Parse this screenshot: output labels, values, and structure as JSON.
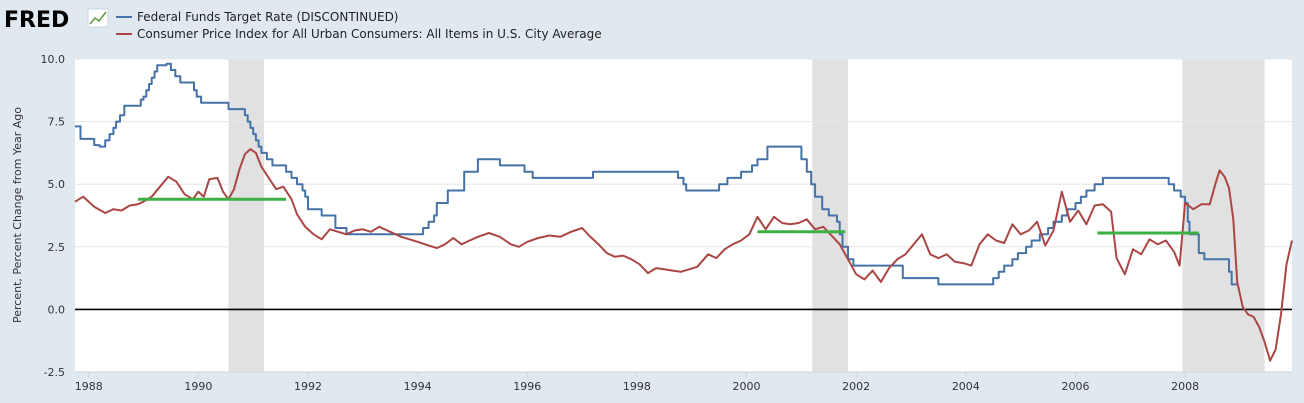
{
  "logo": {
    "text": "FRED"
  },
  "colors": {
    "background": "#e1e9f0",
    "plot_background": "#ffffff",
    "fed_funds": "#4572a7",
    "cpi": "#aa4643",
    "marker": "#3cb043",
    "recession": "#e1e1e1",
    "zero_line": "#000000"
  },
  "chart_data": {
    "type": "line",
    "title": "",
    "xlabel": "",
    "ylabel": "Percent, Percent Change from Year Ago",
    "xlim": [
      1987.75,
      2009.95
    ],
    "ylim": [
      -2.5,
      10.0
    ],
    "x_ticks": [
      1988,
      1990,
      1992,
      1994,
      1996,
      1998,
      2000,
      2002,
      2004,
      2006,
      2008
    ],
    "x_tick_labels": [
      "1988",
      "1990",
      "1992",
      "1994",
      "1996",
      "1998",
      "2000",
      "2002",
      "2004",
      "2006",
      "2008"
    ],
    "y_ticks": [
      -2.5,
      0.0,
      2.5,
      5.0,
      7.5,
      10.0
    ],
    "y_tick_labels": [
      "-2.5",
      "0.0",
      "2.5",
      "5.0",
      "7.5",
      "10.0"
    ],
    "reference_line": {
      "y": 0.0
    },
    "recessions": [
      [
        1990.55,
        1991.2
      ],
      [
        2001.2,
        2001.85
      ],
      [
        2007.95,
        2009.45
      ]
    ],
    "series": [
      {
        "name": "Federal Funds Target Rate (DISCONTINUED)",
        "step": true,
        "points": [
          [
            1987.75,
            7.31
          ],
          [
            1987.85,
            6.81
          ],
          [
            1988.1,
            6.56
          ],
          [
            1988.2,
            6.5
          ],
          [
            1988.3,
            6.75
          ],
          [
            1988.38,
            7.0
          ],
          [
            1988.45,
            7.25
          ],
          [
            1988.5,
            7.5
          ],
          [
            1988.57,
            7.75
          ],
          [
            1988.65,
            8.13
          ],
          [
            1988.95,
            8.38
          ],
          [
            1989.0,
            8.5
          ],
          [
            1989.05,
            8.75
          ],
          [
            1989.1,
            9.0
          ],
          [
            1989.15,
            9.25
          ],
          [
            1989.2,
            9.5
          ],
          [
            1989.25,
            9.75
          ],
          [
            1989.42,
            9.81
          ],
          [
            1989.5,
            9.56
          ],
          [
            1989.58,
            9.31
          ],
          [
            1989.67,
            9.06
          ],
          [
            1989.92,
            8.75
          ],
          [
            1989.97,
            8.5
          ],
          [
            1990.05,
            8.25
          ],
          [
            1990.55,
            8.0
          ],
          [
            1990.85,
            7.75
          ],
          [
            1990.9,
            7.5
          ],
          [
            1990.95,
            7.25
          ],
          [
            1991.0,
            7.0
          ],
          [
            1991.05,
            6.75
          ],
          [
            1991.1,
            6.5
          ],
          [
            1991.15,
            6.25
          ],
          [
            1991.25,
            6.0
          ],
          [
            1991.35,
            5.75
          ],
          [
            1991.6,
            5.5
          ],
          [
            1991.7,
            5.25
          ],
          [
            1991.8,
            5.0
          ],
          [
            1991.9,
            4.75
          ],
          [
            1991.95,
            4.5
          ],
          [
            1992.0,
            4.0
          ],
          [
            1992.25,
            3.75
          ],
          [
            1992.5,
            3.25
          ],
          [
            1992.7,
            3.0
          ],
          [
            1994.1,
            3.25
          ],
          [
            1994.2,
            3.5
          ],
          [
            1994.3,
            3.75
          ],
          [
            1994.35,
            4.25
          ],
          [
            1994.55,
            4.75
          ],
          [
            1994.85,
            5.5
          ],
          [
            1995.1,
            6.0
          ],
          [
            1995.5,
            5.75
          ],
          [
            1995.95,
            5.5
          ],
          [
            1996.1,
            5.25
          ],
          [
            1997.2,
            5.5
          ],
          [
            1998.75,
            5.25
          ],
          [
            1998.85,
            5.0
          ],
          [
            1998.9,
            4.75
          ],
          [
            1999.5,
            5.0
          ],
          [
            1999.65,
            5.25
          ],
          [
            1999.9,
            5.5
          ],
          [
            2000.1,
            5.75
          ],
          [
            2000.2,
            6.0
          ],
          [
            2000.38,
            6.5
          ],
          [
            2001.0,
            6.0
          ],
          [
            2001.1,
            5.5
          ],
          [
            2001.18,
            5.0
          ],
          [
            2001.25,
            4.5
          ],
          [
            2001.38,
            4.0
          ],
          [
            2001.5,
            3.75
          ],
          [
            2001.65,
            3.5
          ],
          [
            2001.7,
            3.0
          ],
          [
            2001.75,
            2.5
          ],
          [
            2001.85,
            2.0
          ],
          [
            2001.95,
            1.75
          ],
          [
            2002.85,
            1.25
          ],
          [
            2003.5,
            1.0
          ],
          [
            2004.5,
            1.25
          ],
          [
            2004.6,
            1.5
          ],
          [
            2004.7,
            1.75
          ],
          [
            2004.85,
            2.0
          ],
          [
            2004.95,
            2.25
          ],
          [
            2005.1,
            2.5
          ],
          [
            2005.2,
            2.75
          ],
          [
            2005.35,
            3.0
          ],
          [
            2005.5,
            3.25
          ],
          [
            2005.6,
            3.5
          ],
          [
            2005.75,
            3.75
          ],
          [
            2005.85,
            4.0
          ],
          [
            2006.0,
            4.25
          ],
          [
            2006.1,
            4.5
          ],
          [
            2006.2,
            4.75
          ],
          [
            2006.35,
            5.0
          ],
          [
            2006.5,
            5.25
          ],
          [
            2007.7,
            5.0
          ],
          [
            2007.8,
            4.75
          ],
          [
            2007.92,
            4.5
          ],
          [
            2008.0,
            4.25
          ],
          [
            2008.05,
            3.5
          ],
          [
            2008.08,
            3.0
          ],
          [
            2008.25,
            2.25
          ],
          [
            2008.35,
            2.0
          ],
          [
            2008.8,
            1.5
          ],
          [
            2008.85,
            1.0
          ],
          [
            2008.97,
            1.0
          ]
        ]
      },
      {
        "name": "Consumer Price Index for All Urban Consumers: All Items in U.S. City Average",
        "step": false,
        "points": [
          [
            1987.75,
            4.3
          ],
          [
            1987.9,
            4.5
          ],
          [
            1988.1,
            4.1
          ],
          [
            1988.3,
            3.85
          ],
          [
            1988.45,
            4.0
          ],
          [
            1988.6,
            3.95
          ],
          [
            1988.75,
            4.15
          ],
          [
            1988.9,
            4.2
          ],
          [
            1989.0,
            4.3
          ],
          [
            1989.15,
            4.5
          ],
          [
            1989.3,
            4.9
          ],
          [
            1989.45,
            5.3
          ],
          [
            1989.6,
            5.1
          ],
          [
            1989.75,
            4.6
          ],
          [
            1989.9,
            4.4
          ],
          [
            1990.0,
            4.7
          ],
          [
            1990.1,
            4.5
          ],
          [
            1990.2,
            5.2
          ],
          [
            1990.35,
            5.25
          ],
          [
            1990.45,
            4.7
          ],
          [
            1990.55,
            4.4
          ],
          [
            1990.65,
            4.8
          ],
          [
            1990.75,
            5.6
          ],
          [
            1990.85,
            6.2
          ],
          [
            1990.95,
            6.4
          ],
          [
            1991.05,
            6.25
          ],
          [
            1991.15,
            5.7
          ],
          [
            1991.3,
            5.2
          ],
          [
            1991.42,
            4.8
          ],
          [
            1991.55,
            4.9
          ],
          [
            1991.7,
            4.4
          ],
          [
            1991.8,
            3.8
          ],
          [
            1991.95,
            3.3
          ],
          [
            1992.1,
            3.0
          ],
          [
            1992.25,
            2.8
          ],
          [
            1992.4,
            3.2
          ],
          [
            1992.55,
            3.1
          ],
          [
            1992.7,
            3.0
          ],
          [
            1992.85,
            3.15
          ],
          [
            1993.0,
            3.2
          ],
          [
            1993.15,
            3.1
          ],
          [
            1993.3,
            3.3
          ],
          [
            1993.5,
            3.1
          ],
          [
            1993.7,
            2.9
          ],
          [
            1993.85,
            2.8
          ],
          [
            1994.0,
            2.7
          ],
          [
            1994.2,
            2.55
          ],
          [
            1994.35,
            2.45
          ],
          [
            1994.5,
            2.6
          ],
          [
            1994.65,
            2.85
          ],
          [
            1994.8,
            2.6
          ],
          [
            1994.95,
            2.75
          ],
          [
            1995.1,
            2.9
          ],
          [
            1995.3,
            3.05
          ],
          [
            1995.5,
            2.9
          ],
          [
            1995.7,
            2.6
          ],
          [
            1995.85,
            2.5
          ],
          [
            1996.0,
            2.7
          ],
          [
            1996.2,
            2.85
          ],
          [
            1996.4,
            2.95
          ],
          [
            1996.6,
            2.9
          ],
          [
            1996.8,
            3.1
          ],
          [
            1997.0,
            3.25
          ],
          [
            1997.15,
            2.9
          ],
          [
            1997.3,
            2.6
          ],
          [
            1997.45,
            2.25
          ],
          [
            1997.6,
            2.1
          ],
          [
            1997.75,
            2.15
          ],
          [
            1997.9,
            2.0
          ],
          [
            1998.05,
            1.8
          ],
          [
            1998.2,
            1.45
          ],
          [
            1998.35,
            1.65
          ],
          [
            1998.5,
            1.6
          ],
          [
            1998.65,
            1.55
          ],
          [
            1998.8,
            1.5
          ],
          [
            1998.95,
            1.6
          ],
          [
            1999.1,
            1.7
          ],
          [
            1999.3,
            2.2
          ],
          [
            1999.45,
            2.05
          ],
          [
            1999.6,
            2.4
          ],
          [
            1999.75,
            2.6
          ],
          [
            1999.9,
            2.75
          ],
          [
            2000.05,
            3.0
          ],
          [
            2000.2,
            3.7
          ],
          [
            2000.35,
            3.2
          ],
          [
            2000.5,
            3.7
          ],
          [
            2000.65,
            3.45
          ],
          [
            2000.8,
            3.4
          ],
          [
            2000.95,
            3.45
          ],
          [
            2001.1,
            3.6
          ],
          [
            2001.25,
            3.2
          ],
          [
            2001.4,
            3.3
          ],
          [
            2001.55,
            2.95
          ],
          [
            2001.7,
            2.6
          ],
          [
            2001.85,
            2.0
          ],
          [
            2002.0,
            1.4
          ],
          [
            2002.15,
            1.2
          ],
          [
            2002.3,
            1.55
          ],
          [
            2002.45,
            1.1
          ],
          [
            2002.6,
            1.65
          ],
          [
            2002.75,
            2.0
          ],
          [
            2002.9,
            2.2
          ],
          [
            2003.05,
            2.6
          ],
          [
            2003.2,
            3.0
          ],
          [
            2003.35,
            2.2
          ],
          [
            2003.5,
            2.05
          ],
          [
            2003.65,
            2.2
          ],
          [
            2003.8,
            1.9
          ],
          [
            2003.95,
            1.85
          ],
          [
            2004.1,
            1.75
          ],
          [
            2004.25,
            2.6
          ],
          [
            2004.4,
            3.0
          ],
          [
            2004.55,
            2.75
          ],
          [
            2004.7,
            2.65
          ],
          [
            2004.85,
            3.4
          ],
          [
            2005.0,
            3.0
          ],
          [
            2005.15,
            3.15
          ],
          [
            2005.3,
            3.5
          ],
          [
            2005.45,
            2.55
          ],
          [
            2005.6,
            3.15
          ],
          [
            2005.75,
            4.7
          ],
          [
            2005.9,
            3.5
          ],
          [
            2006.05,
            3.95
          ],
          [
            2006.2,
            3.4
          ],
          [
            2006.35,
            4.15
          ],
          [
            2006.5,
            4.2
          ],
          [
            2006.65,
            3.9
          ],
          [
            2006.75,
            2.05
          ],
          [
            2006.9,
            1.4
          ],
          [
            2007.05,
            2.4
          ],
          [
            2007.2,
            2.2
          ],
          [
            2007.35,
            2.8
          ],
          [
            2007.5,
            2.6
          ],
          [
            2007.65,
            2.75
          ],
          [
            2007.8,
            2.3
          ],
          [
            2007.9,
            1.75
          ],
          [
            2008.0,
            4.25
          ],
          [
            2008.15,
            4.0
          ],
          [
            2008.3,
            4.2
          ],
          [
            2008.45,
            4.2
          ],
          [
            2008.55,
            5.0
          ],
          [
            2008.63,
            5.55
          ],
          [
            2008.72,
            5.3
          ],
          [
            2008.8,
            4.85
          ],
          [
            2008.88,
            3.6
          ],
          [
            2008.95,
            1.1
          ],
          [
            2009.05,
            0.1
          ],
          [
            2009.15,
            -0.2
          ],
          [
            2009.25,
            -0.3
          ],
          [
            2009.35,
            -0.7
          ],
          [
            2009.45,
            -1.3
          ],
          [
            2009.55,
            -2.05
          ],
          [
            2009.65,
            -1.6
          ],
          [
            2009.75,
            -0.2
          ],
          [
            2009.85,
            1.8
          ],
          [
            2009.95,
            2.75
          ]
        ]
      }
    ],
    "marker_lines": [
      {
        "x": [
          1988.9,
          1991.6
        ],
        "y": 4.4
      },
      {
        "x": [
          2000.2,
          2001.8
        ],
        "y": 3.1
      },
      {
        "x": [
          2006.4,
          2008.25
        ],
        "y": 3.05
      }
    ]
  }
}
